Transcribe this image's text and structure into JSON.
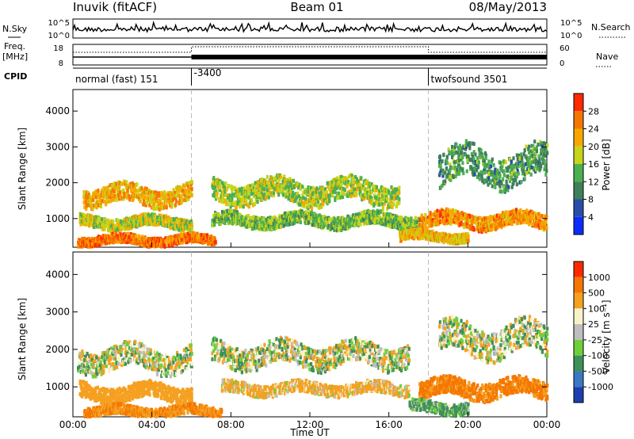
{
  "header": {
    "station": "Inuvik (fitACF)",
    "beam": "Beam 01",
    "date": "08/May/2013"
  },
  "labels": {
    "nsky": "N.Sky",
    "freq_line1": "Freq.",
    "freq_line2": "[MHz]",
    "cpid": "CPID",
    "nsearch": "N.Search",
    "nave": "Nave",
    "nsky_top_tick": "10^5",
    "nsky_bottom_tick": "10^0",
    "freq_top_tick": "18",
    "freq_bottom_tick": "8",
    "nave_top_tick": "60",
    "nave_bottom_tick": "0"
  },
  "cpid_segments": [
    {
      "label": "normal (fast) 151",
      "start_hour": 0,
      "end_hour": 6
    },
    {
      "label": "-3400",
      "start_hour": 6,
      "end_hour": 18
    },
    {
      "label": "twofsound 3501",
      "start_hour": 18,
      "end_hour": 24
    }
  ],
  "chart_data": [
    {
      "type": "heatmap",
      "title": "",
      "xlabel": "Time UT",
      "ylabel": "Slant Range [km]",
      "xticks": [
        "00:00",
        "04:00",
        "08:00",
        "12:00",
        "16:00",
        "20:00",
        "00:00"
      ],
      "xtick_hours": [
        0,
        4,
        8,
        12,
        16,
        20,
        24
      ],
      "xlim_hours": [
        0,
        24
      ],
      "ylim_km": [
        200,
        4600
      ],
      "yticks": [
        1000,
        2000,
        3000,
        4000
      ],
      "colorbar": {
        "label": "Power [dB]",
        "ticks": [
          "4",
          "8",
          "12",
          "16",
          "20",
          "24",
          "28"
        ],
        "colors": [
          "#0b2cff",
          "#2a4ea8",
          "#3f7f5a",
          "#4caf50",
          "#c6d41a",
          "#f7a800",
          "#f57600",
          "#ff2a00"
        ]
      },
      "bands": [
        {
          "center_km": 1700,
          "width_km": 500,
          "start_hour": 0.5,
          "end_hour": 6.0,
          "value": 22
        },
        {
          "center_km": 950,
          "width_km": 300,
          "start_hour": 0.3,
          "end_hour": 6.0,
          "value": 18
        },
        {
          "center_km": 450,
          "width_km": 250,
          "start_hour": 0.2,
          "end_hour": 7.2,
          "value": 26
        },
        {
          "center_km": 1800,
          "width_km": 600,
          "start_hour": 7.0,
          "end_hour": 16.5,
          "value": 17
        },
        {
          "center_km": 1000,
          "width_km": 350,
          "start_hour": 7.0,
          "end_hour": 17.5,
          "value": 15
        },
        {
          "center_km": 2500,
          "width_km": 900,
          "start_hour": 18.5,
          "end_hour": 24,
          "value": 12
        },
        {
          "center_km": 1000,
          "width_km": 400,
          "start_hour": 17.5,
          "end_hour": 24,
          "value": 24
        },
        {
          "center_km": 550,
          "width_km": 250,
          "start_hour": 16.5,
          "end_hour": 20.0,
          "value": 21
        }
      ]
    },
    {
      "type": "heatmap",
      "title": "",
      "xlabel": "Time UT",
      "ylabel": "Slant Range [km]",
      "xticks": [
        "00:00",
        "04:00",
        "08:00",
        "12:00",
        "16:00",
        "20:00",
        "00:00"
      ],
      "xtick_hours": [
        0,
        4,
        8,
        12,
        16,
        20,
        24
      ],
      "xlim_hours": [
        0,
        24
      ],
      "ylim_km": [
        200,
        4600
      ],
      "yticks": [
        1000,
        2000,
        3000,
        4000
      ],
      "colorbar": {
        "label": "Velocity [m s⁻¹]",
        "ticks": [
          "1000",
          "500",
          "100",
          "25",
          "-25",
          "-100",
          "-500",
          "-1000"
        ],
        "colors": [
          "#1b3fb0",
          "#3a78c2",
          "#3f8f5a",
          "#6ecf3a",
          "#bebebe",
          "#f9f2c8",
          "#f5a020",
          "#f57600",
          "#ff2a00"
        ]
      },
      "bands": [
        {
          "center_km": 1800,
          "width_km": 600,
          "start_hour": 0.2,
          "end_hour": 6.0,
          "value": 0
        },
        {
          "center_km": 900,
          "width_km": 400,
          "start_hour": 0.3,
          "end_hour": 6.0,
          "value": -300
        },
        {
          "center_km": 400,
          "width_km": 250,
          "start_hour": 0.5,
          "end_hour": 7.5,
          "value": -500
        },
        {
          "center_km": 1900,
          "width_km": 600,
          "start_hour": 7.0,
          "end_hour": 17.0,
          "value": 0
        },
        {
          "center_km": 1000,
          "width_km": 300,
          "start_hour": 7.5,
          "end_hour": 17.0,
          "value": -150
        },
        {
          "center_km": 2300,
          "width_km": 800,
          "start_hour": 18.5,
          "end_hour": 24,
          "value": 0
        },
        {
          "center_km": 1000,
          "width_km": 450,
          "start_hour": 17.5,
          "end_hour": 24,
          "value": -600
        },
        {
          "center_km": 500,
          "width_km": 300,
          "start_hour": 17.0,
          "end_hour": 20.0,
          "value": 150
        }
      ]
    }
  ]
}
